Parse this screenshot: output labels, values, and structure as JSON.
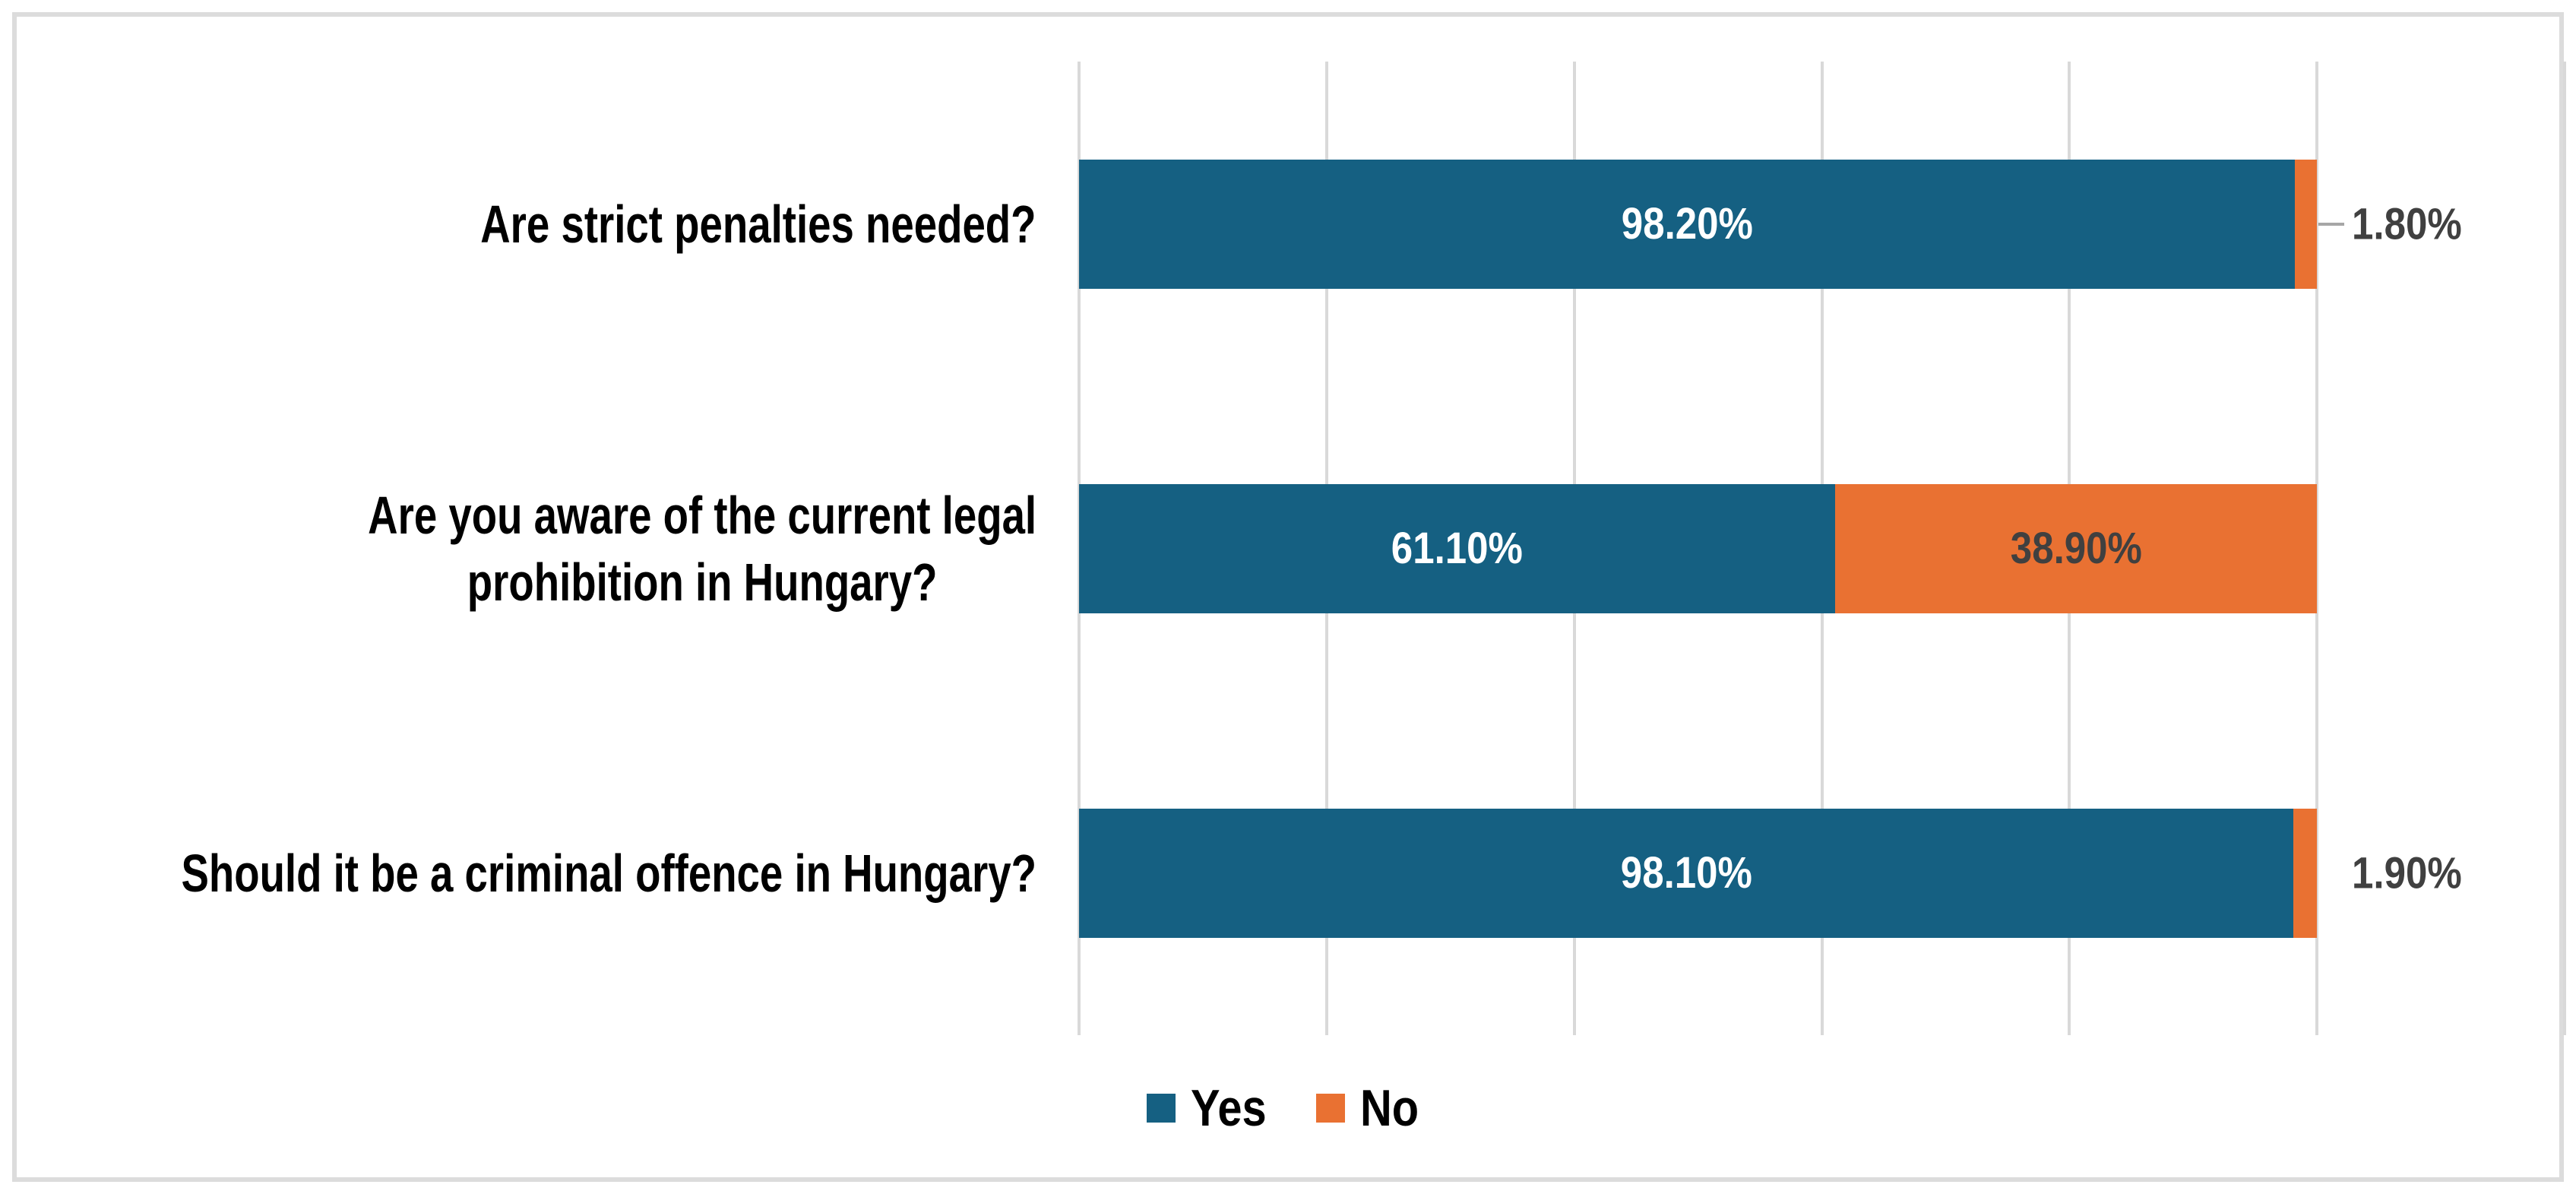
{
  "chart_data": {
    "type": "bar",
    "orientation": "horizontal",
    "stacked": true,
    "title": "",
    "xlabel": "",
    "ylabel": "",
    "categories": [
      "Are strict penalties needed?",
      "Are you aware of the current legal\nprohibition in Hungary?",
      "Should it be a criminal offence in Hungary?"
    ],
    "series": [
      {
        "name": "Yes",
        "color": "#156082",
        "values": [
          98.2,
          61.1,
          98.1
        ],
        "data_labels": [
          "98.20%",
          "61.10%",
          "98.10%"
        ],
        "label_placement": [
          "inside",
          "inside",
          "inside"
        ],
        "label_colors": [
          "#ffffff",
          "#ffffff",
          "#ffffff"
        ],
        "leader_lines": [
          false,
          false,
          false
        ]
      },
      {
        "name": "No",
        "color": "#E97132",
        "values": [
          1.8,
          38.9,
          1.9
        ],
        "data_labels": [
          "1.80%",
          "38.90%",
          "1.90%"
        ],
        "label_placement": [
          "outside",
          "inside",
          "outside"
        ],
        "label_colors": [
          "#404040",
          "#404040",
          "#404040"
        ],
        "leader_lines": [
          true,
          false,
          false
        ]
      }
    ],
    "xlim": [
      0,
      120
    ],
    "grid": true,
    "grid_step": 20,
    "gridline_color": "#d9d9d9",
    "leader_line_color": "#a6a6a6",
    "legend": {
      "position": "bottom",
      "entries": [
        "Yes",
        "No"
      ]
    }
  },
  "frame": {
    "border_color": "#dcdcdc",
    "background": "#ffffff"
  }
}
